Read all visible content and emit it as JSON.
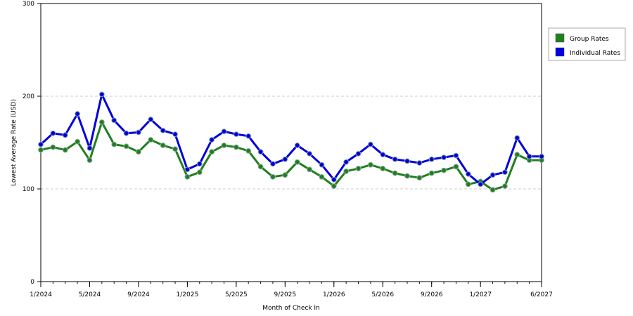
{
  "chart_data": {
    "type": "line",
    "title": "",
    "xlabel": "Month of Check In",
    "ylabel": "Lowest Average Rate (USD)",
    "ylim": [
      0,
      300
    ],
    "yticks": [
      0,
      100,
      200,
      300
    ],
    "grid": "horizontal dashed",
    "legend_position": "top-right",
    "x": [
      "1/2024",
      "2/2024",
      "3/2024",
      "4/2024",
      "5/2024",
      "6/2024",
      "7/2024",
      "8/2024",
      "9/2024",
      "10/2024",
      "11/2024",
      "12/2024",
      "1/2025",
      "2/2025",
      "3/2025",
      "4/2025",
      "5/2025",
      "6/2025",
      "7/2025",
      "8/2025",
      "9/2025",
      "10/2025",
      "11/2025",
      "12/2025",
      "1/2026",
      "2/2026",
      "3/2026",
      "4/2026",
      "5/2026",
      "6/2026",
      "7/2026",
      "8/2026",
      "9/2026",
      "10/2026",
      "11/2026",
      "12/2026",
      "1/2027",
      "2/2027",
      "3/2027",
      "4/2027",
      "5/2027",
      "6/2027"
    ],
    "xtick_labels": [
      "1/2024",
      "5/2024",
      "9/2024",
      "1/2025",
      "5/2025",
      "9/2025",
      "1/2026",
      "5/2026",
      "9/2026",
      "1/2027",
      "6/2027"
    ],
    "series": [
      {
        "name": "Group Rates",
        "color": "#1f7f1f",
        "values": [
          142,
          145,
          142,
          151,
          131,
          172,
          148,
          146,
          140,
          153,
          147,
          143,
          113,
          118,
          140,
          147,
          145,
          141,
          124,
          113,
          115,
          129,
          121,
          113,
          103,
          119,
          122,
          126,
          122,
          117,
          114,
          112,
          117,
          120,
          124,
          105,
          108,
          99,
          103,
          137,
          131,
          131
        ]
      },
      {
        "name": "Individual Rates",
        "color": "#0000dd",
        "values": [
          148,
          160,
          158,
          181,
          144,
          202,
          174,
          160,
          161,
          175,
          163,
          159,
          121,
          127,
          153,
          162,
          159,
          157,
          140,
          127,
          132,
          147,
          138,
          126,
          110,
          129,
          138,
          148,
          137,
          132,
          130,
          128,
          132,
          134,
          136,
          116,
          105,
          115,
          118,
          155,
          135,
          135
        ]
      }
    ]
  }
}
